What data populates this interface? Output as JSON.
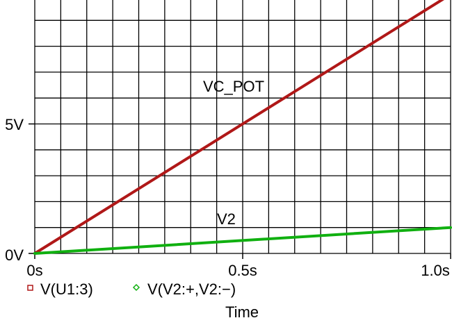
{
  "chart_data": {
    "type": "line",
    "xlabel": "Time",
    "ylabel": "",
    "xlim": [
      0,
      1.0
    ],
    "ylim": [
      0,
      10
    ],
    "grid": true,
    "x_ticks": [
      "0s",
      "0.5s",
      "1.0s"
    ],
    "y_ticks": [
      "0V",
      "5V"
    ],
    "series": [
      {
        "name": "V(U1:3)",
        "color": "#b01818",
        "marker": "square",
        "x": [
          0,
          1.0
        ],
        "y": [
          0,
          10
        ]
      },
      {
        "name": "V(V2:+,V2:−)",
        "color": "#10b010",
        "marker": "diamond",
        "x": [
          0,
          1.0
        ],
        "y": [
          0,
          1
        ]
      }
    ],
    "annotations": [
      "VC_POT",
      "V2"
    ],
    "legend_position": "bottom-left"
  }
}
